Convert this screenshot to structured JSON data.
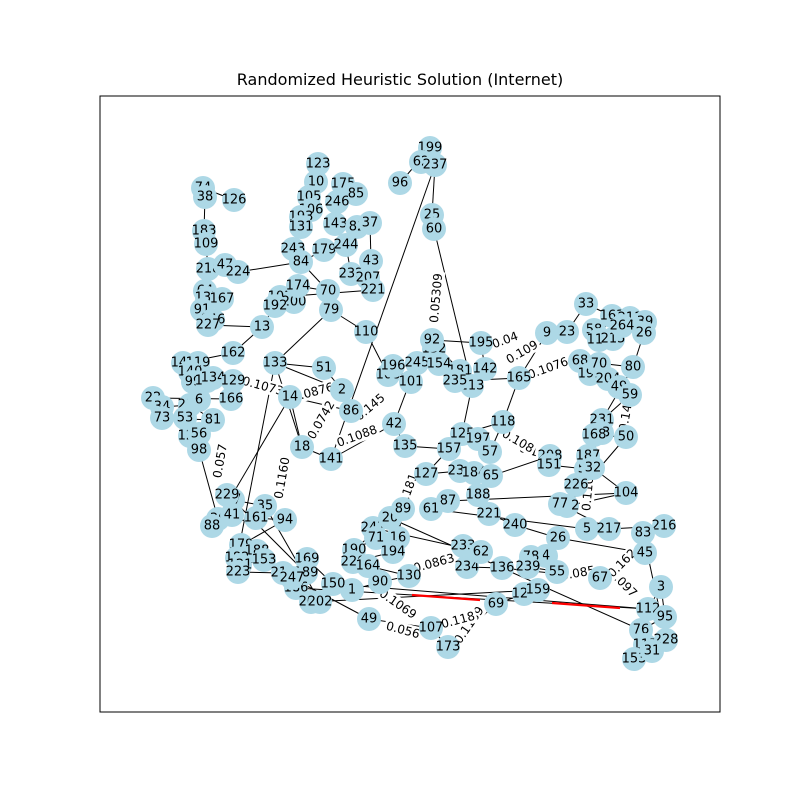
{
  "title": "Randomized Heuristic Solution (Internet)",
  "colors": {
    "node": "#add8e6",
    "edge": "#000000",
    "highlight": "#ff0000",
    "frame": "#000000"
  },
  "nodes": [
    "199",
    "62",
    "237",
    "96",
    "123",
    "10",
    "175",
    "85",
    "105",
    "246",
    "106",
    "193",
    "131",
    "143",
    "82",
    "37",
    "74",
    "38",
    "126",
    "183",
    "109",
    "218",
    "47",
    "224",
    "243",
    "84",
    "43",
    "25",
    "60",
    "179",
    "244",
    "232",
    "207",
    "221",
    "64",
    "137",
    "167",
    "91",
    "146",
    "227",
    "70",
    "103",
    "200",
    "192",
    "174",
    "79",
    "13",
    "162",
    "145",
    "119",
    "140",
    "99",
    "171",
    "134",
    "129",
    "166",
    "22",
    "34",
    "236",
    "81",
    "73",
    "53",
    "6",
    "120",
    "56",
    "98",
    "133",
    "51",
    "2",
    "86",
    "14",
    "18",
    "141",
    "42",
    "110",
    "108",
    "196",
    "101",
    "245",
    "132",
    "154",
    "181",
    "92",
    "195",
    "142",
    "213",
    "235",
    "165",
    "9",
    "23",
    "33",
    "163",
    "211",
    "58",
    "114",
    "215",
    "264",
    "39",
    "26",
    "80",
    "68",
    "191",
    "70",
    "204",
    "49",
    "59",
    "231",
    "93",
    "168",
    "50",
    "118",
    "125",
    "197",
    "57",
    "135",
    "157",
    "127",
    "238",
    "184",
    "188",
    "65",
    "208",
    "151",
    "52",
    "187",
    "226",
    "32",
    "104",
    "102",
    "77",
    "240",
    "221",
    "87",
    "61",
    "5",
    "217",
    "216",
    "83",
    "45",
    "26",
    "4",
    "55",
    "78",
    "239",
    "67",
    "136",
    "234",
    "233",
    "62",
    "247",
    "20",
    "190",
    "71",
    "16",
    "89",
    "194",
    "220",
    "164",
    "130",
    "90",
    "1",
    "150",
    "169",
    "189",
    "186",
    "207",
    "202",
    "35",
    "17",
    "229",
    "36",
    "41",
    "88",
    "161",
    "94",
    "179",
    "188",
    "182",
    "153",
    "121",
    "223",
    "213",
    "247",
    "49",
    "107",
    "173",
    "69",
    "128",
    "159",
    "112",
    "3",
    "95",
    "76",
    "115",
    "228",
    "153",
    "31",
    "241"
  ],
  "edge_labels": [
    "0.05309",
    "0.1069",
    "0.056",
    "0.1189",
    "0.118",
    "0.1073",
    "0.1160",
    "0.1088",
    "0.0863",
    "0.107",
    "0.109",
    "0.04",
    "0.1076",
    "0.142",
    "0.097",
    "0.1102",
    "0.0876",
    "0.0742",
    "0.145",
    "0.085",
    "0.162",
    "0.057",
    "0.108",
    "0.181"
  ]
}
